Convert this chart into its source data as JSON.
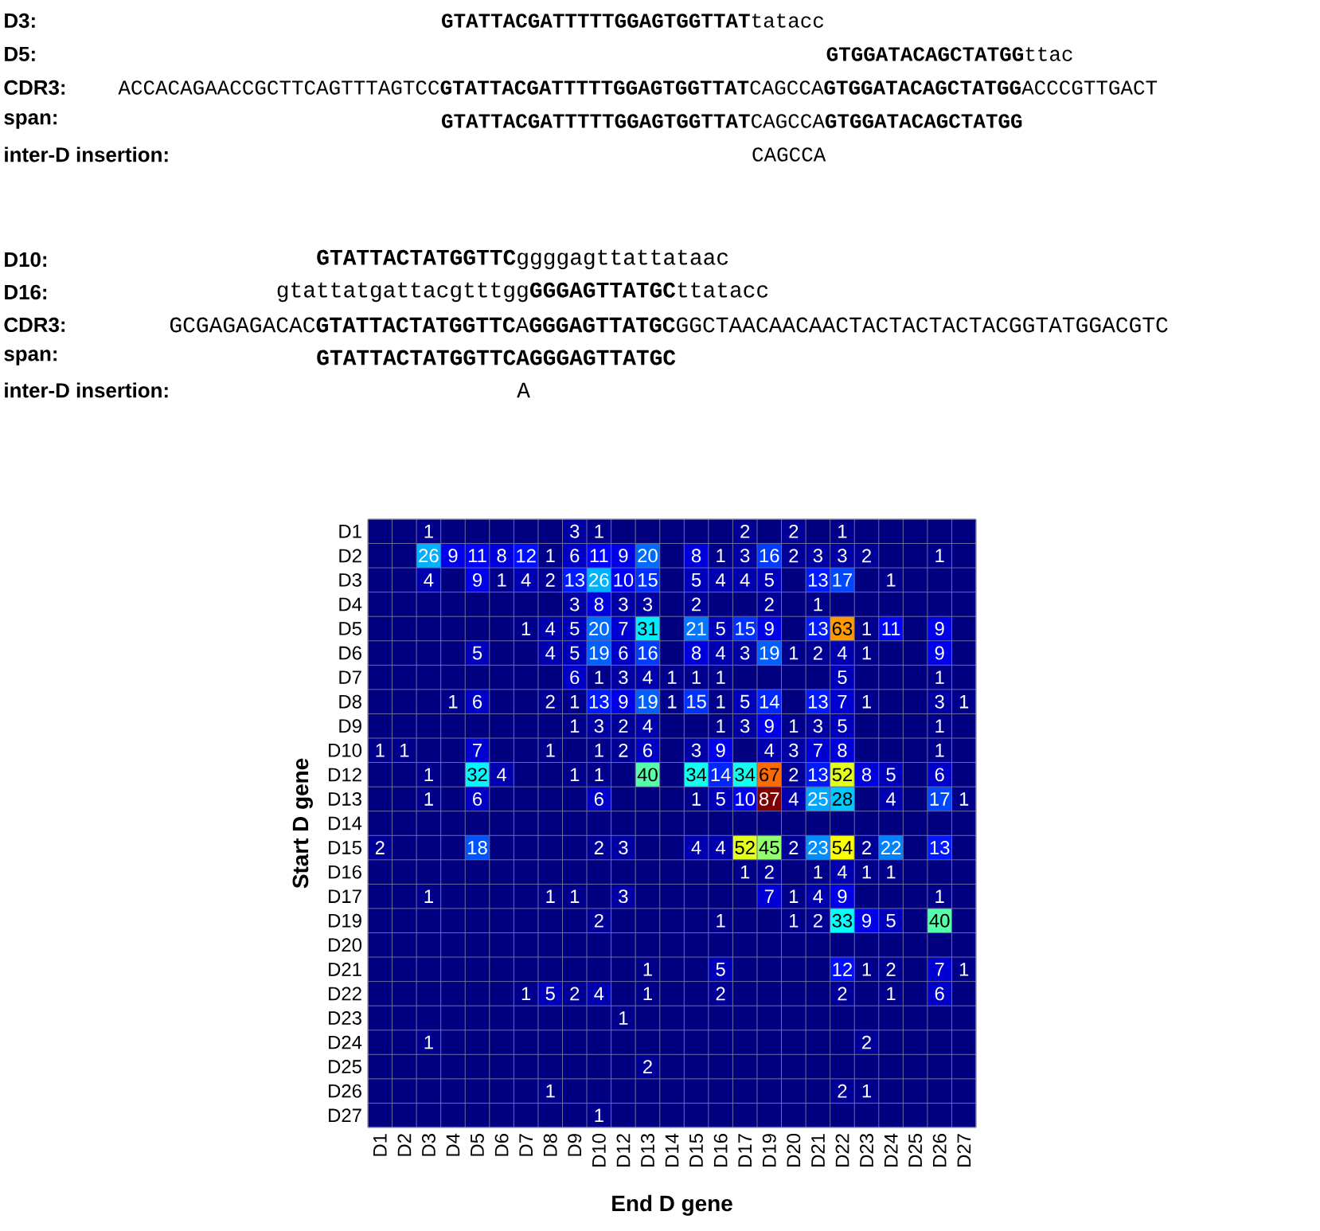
{
  "chart_data": {
    "type": "heatmap",
    "xlabel": "End D gene",
    "ylabel": "Start D gene",
    "categories": [
      "D1",
      "D2",
      "D3",
      "D4",
      "D5",
      "D6",
      "D7",
      "D8",
      "D9",
      "D10",
      "D12",
      "D13",
      "D14",
      "D15",
      "D16",
      "D17",
      "D19",
      "D20",
      "D21",
      "D22",
      "D23",
      "D24",
      "D25",
      "D26",
      "D27"
    ],
    "y_categories": [
      "D1",
      "D2",
      "D3",
      "D4",
      "D5",
      "D6",
      "D7",
      "D8",
      "D9",
      "D10",
      "D12",
      "D13",
      "D14",
      "D15",
      "D16",
      "D17",
      "D19",
      "D20",
      "D21",
      "D22",
      "D23",
      "D24",
      "D25",
      "D26",
      "D27"
    ],
    "cells": [
      [
        null,
        null,
        1,
        null,
        null,
        null,
        null,
        null,
        3,
        1,
        null,
        null,
        null,
        null,
        null,
        2,
        null,
        2,
        null,
        1,
        null,
        null,
        null,
        null,
        null
      ],
      [
        null,
        null,
        26,
        9,
        11,
        8,
        12,
        1,
        6,
        11,
        9,
        20,
        null,
        8,
        1,
        3,
        16,
        2,
        3,
        3,
        2,
        null,
        null,
        1,
        null
      ],
      [
        null,
        null,
        4,
        null,
        9,
        1,
        4,
        2,
        13,
        26,
        10,
        15,
        null,
        5,
        4,
        4,
        5,
        null,
        13,
        17,
        null,
        1,
        null,
        null,
        null
      ],
      [
        null,
        null,
        null,
        null,
        null,
        null,
        null,
        null,
        3,
        8,
        3,
        3,
        null,
        2,
        null,
        null,
        2,
        null,
        1,
        null,
        null,
        null,
        null,
        null,
        null
      ],
      [
        null,
        null,
        null,
        null,
        null,
        null,
        1,
        4,
        5,
        20,
        7,
        31,
        null,
        21,
        5,
        15,
        9,
        null,
        13,
        63,
        1,
        11,
        null,
        9,
        null
      ],
      [
        null,
        null,
        null,
        null,
        5,
        null,
        null,
        4,
        5,
        19,
        6,
        16,
        null,
        8,
        4,
        3,
        19,
        1,
        2,
        4,
        1,
        null,
        null,
        9,
        null
      ],
      [
        null,
        null,
        null,
        null,
        null,
        null,
        null,
        null,
        6,
        1,
        3,
        4,
        1,
        1,
        1,
        null,
        null,
        null,
        null,
        5,
        null,
        null,
        null,
        1,
        null
      ],
      [
        null,
        null,
        null,
        1,
        6,
        null,
        null,
        2,
        1,
        13,
        9,
        19,
        1,
        15,
        1,
        5,
        14,
        null,
        13,
        7,
        1,
        null,
        null,
        3,
        1
      ],
      [
        null,
        null,
        null,
        null,
        null,
        null,
        null,
        null,
        1,
        3,
        2,
        4,
        null,
        null,
        1,
        3,
        9,
        1,
        3,
        5,
        null,
        null,
        null,
        1,
        null
      ],
      [
        1,
        1,
        null,
        null,
        7,
        null,
        null,
        1,
        null,
        1,
        2,
        6,
        null,
        3,
        9,
        null,
        4,
        3,
        7,
        8,
        null,
        null,
        null,
        1,
        null
      ],
      [
        null,
        null,
        1,
        null,
        32,
        4,
        null,
        null,
        1,
        1,
        null,
        40,
        null,
        34,
        14,
        34,
        67,
        2,
        13,
        52,
        8,
        5,
        null,
        6,
        null
      ],
      [
        null,
        null,
        1,
        null,
        6,
        null,
        null,
        null,
        null,
        6,
        null,
        null,
        null,
        1,
        5,
        10,
        87,
        4,
        25,
        28,
        null,
        4,
        null,
        17,
        1
      ],
      [
        null,
        null,
        null,
        null,
        null,
        null,
        null,
        null,
        null,
        null,
        null,
        null,
        null,
        null,
        null,
        null,
        null,
        null,
        null,
        null,
        null,
        null,
        null,
        null,
        null
      ],
      [
        2,
        null,
        null,
        null,
        18,
        null,
        null,
        null,
        null,
        2,
        3,
        null,
        null,
        4,
        4,
        52,
        45,
        2,
        23,
        54,
        2,
        22,
        null,
        13,
        null
      ],
      [
        null,
        null,
        null,
        null,
        null,
        null,
        null,
        null,
        null,
        null,
        null,
        null,
        null,
        null,
        null,
        1,
        2,
        null,
        1,
        4,
        1,
        1,
        null,
        null,
        null
      ],
      [
        null,
        null,
        1,
        null,
        null,
        null,
        null,
        1,
        1,
        null,
        3,
        null,
        null,
        null,
        null,
        null,
        7,
        1,
        4,
        9,
        null,
        null,
        null,
        1,
        null
      ],
      [
        null,
        null,
        null,
        null,
        null,
        null,
        null,
        null,
        null,
        2,
        null,
        null,
        null,
        null,
        1,
        null,
        null,
        1,
        2,
        33,
        9,
        5,
        null,
        40,
        null
      ],
      [
        null,
        null,
        null,
        null,
        null,
        null,
        null,
        null,
        null,
        null,
        null,
        null,
        null,
        null,
        null,
        null,
        null,
        null,
        null,
        null,
        null,
        null,
        null,
        null,
        null
      ],
      [
        null,
        null,
        null,
        null,
        null,
        null,
        null,
        null,
        null,
        null,
        null,
        1,
        null,
        null,
        5,
        null,
        null,
        null,
        null,
        12,
        1,
        2,
        null,
        7,
        1
      ],
      [
        null,
        null,
        null,
        null,
        null,
        null,
        1,
        5,
        2,
        4,
        null,
        1,
        null,
        null,
        2,
        null,
        null,
        null,
        null,
        2,
        null,
        1,
        null,
        6,
        null
      ],
      [
        null,
        null,
        null,
        null,
        null,
        null,
        null,
        null,
        null,
        null,
        1,
        null,
        null,
        null,
        null,
        null,
        null,
        null,
        null,
        null,
        null,
        null,
        null,
        null,
        null
      ],
      [
        null,
        null,
        1,
        null,
        null,
        null,
        null,
        null,
        null,
        null,
        null,
        null,
        null,
        null,
        null,
        null,
        null,
        null,
        null,
        null,
        2,
        null,
        null,
        null,
        null
      ],
      [
        null,
        null,
        null,
        null,
        null,
        null,
        null,
        null,
        null,
        null,
        null,
        2,
        null,
        null,
        null,
        null,
        null,
        null,
        null,
        null,
        null,
        null,
        null,
        null,
        null
      ],
      [
        null,
        null,
        null,
        null,
        null,
        null,
        null,
        1,
        null,
        null,
        null,
        null,
        null,
        null,
        null,
        null,
        null,
        null,
        null,
        2,
        1,
        null,
        null,
        null,
        null
      ],
      [
        null,
        null,
        null,
        null,
        null,
        null,
        null,
        null,
        null,
        1,
        null,
        null,
        null,
        null,
        null,
        null,
        null,
        null,
        null,
        null,
        null,
        null,
        null,
        null,
        null
      ]
    ],
    "data_labels": true,
    "grid": true,
    "annotations": [
      "D3:",
      "**GTATTACGATTTTTGGAGTGGTTAT**tatacc",
      "D5:",
      "**GTGGATACAGCTATGG**ttac",
      "CDR3:",
      "ACCACAGAACCGCTTCAGTTTAGTCC**GTATTACGATTTTTGGAGTGGTTAT**CAGCCA**GTGGATACAGCTATGG**ACCCGTTGACT",
      "span:",
      "**GTATTACGATTTTTGGAGTGGTTAT**CAGCCA**GTGGATACAGCTATGG**",
      "inter-D insertion:",
      "CAGCCA",
      "D10:",
      "**GTATTACTATGGTTC**ggggagttattataac",
      "D16:",
      "gtattatgattacgtttgg**GGGAGTTATGC**ttatacc",
      "CDR3:",
      "GCGAGAGACAC**GTATTACTATGGTTC**A**GGGAGTTATGC**GGCTAACAACAACTACTACTACTACGGTATGGACGTC",
      "span:",
      "GTATTACTATGGTTCAGGGAGTTATGC",
      "inter-D insertion:",
      "A"
    ]
  }
}
